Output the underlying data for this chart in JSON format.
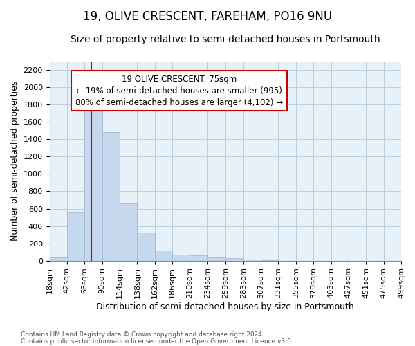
{
  "title": "19, OLIVE CRESCENT, FAREHAM, PO16 9NU",
  "subtitle": "Size of property relative to semi-detached houses in Portsmouth",
  "xlabel": "Distribution of semi-detached houses by size in Portsmouth",
  "ylabel": "Number of semi-detached properties",
  "footnote1": "Contains HM Land Registry data © Crown copyright and database right 2024.",
  "footnote2": "Contains public sector information licensed under the Open Government Licence v3.0.",
  "annotation_line1": "19 OLIVE CRESCENT: 75sqm",
  "annotation_line2": "← 19% of semi-detached houses are smaller (995)",
  "annotation_line3": "80% of semi-detached houses are larger (4,102) →",
  "bar_color": "#c5d8ee",
  "bar_edge_color": "#a0bcd8",
  "property_line_color": "#cc0000",
  "annotation_box_edge_color": "#cc0000",
  "bin_edges": [
    18,
    42,
    66,
    90,
    114,
    138,
    162,
    186,
    210,
    234,
    259,
    283,
    307,
    331,
    355,
    379,
    403,
    427,
    451,
    475,
    499
  ],
  "bar_heights": [
    40,
    560,
    1800,
    1480,
    660,
    325,
    120,
    65,
    60,
    35,
    30,
    15,
    5,
    0,
    0,
    0,
    0,
    0,
    0,
    0
  ],
  "property_size": 75,
  "ylim": [
    0,
    2300
  ],
  "yticks": [
    0,
    200,
    400,
    600,
    800,
    1000,
    1200,
    1400,
    1600,
    1800,
    2000,
    2200
  ],
  "background_color": "#ffffff",
  "plot_bg_color": "#e8f0f8",
  "grid_color": "#b8cfe0",
  "title_fontsize": 12,
  "subtitle_fontsize": 10,
  "tick_label_fontsize": 8,
  "ylabel_fontsize": 9,
  "xlabel_fontsize": 9,
  "annotation_fontsize": 8.5
}
